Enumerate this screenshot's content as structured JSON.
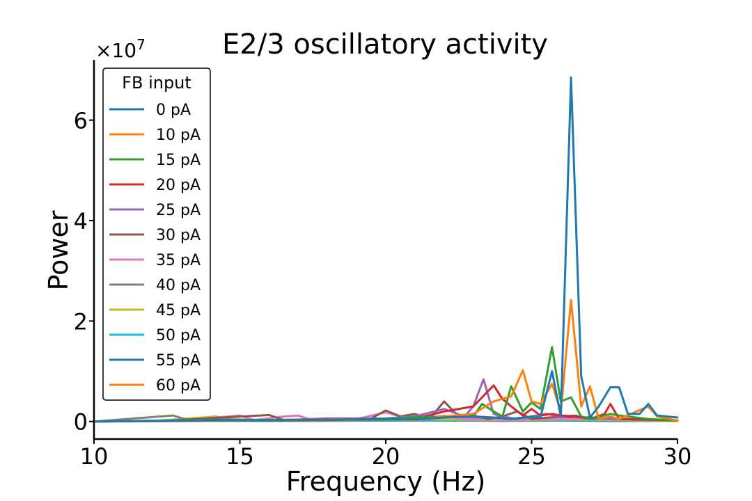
{
  "chart_data": {
    "type": "line",
    "title": "E2/3 oscillatory activity",
    "xlabel": "Frequency (Hz)",
    "ylabel": "Power",
    "y_offset_text": "×10^7",
    "y_offset_base": "×10",
    "y_offset_exp": "7",
    "xlim": [
      10,
      30
    ],
    "ylim": [
      -0.35,
      7.2
    ],
    "y_units": "×10^7",
    "xticks": [
      10,
      15,
      20,
      25,
      30
    ],
    "xtick_labels": [
      "10",
      "15",
      "20",
      "25",
      "30"
    ],
    "yticks": [
      0,
      2,
      4,
      6
    ],
    "ytick_labels": [
      "0",
      "2",
      "4",
      "6"
    ],
    "grid": false,
    "legend": {
      "title": "FB input",
      "placement": "top-left"
    },
    "series": [
      {
        "name": "0 pA",
        "color": "#1f77b4",
        "x": [
          10,
          12,
          14,
          16,
          18,
          20,
          21,
          22,
          23,
          23.7,
          24.3,
          25,
          25.3,
          25.7,
          26,
          26.35,
          26.7,
          27,
          27.3,
          27.7,
          28,
          28.3,
          28.7,
          29,
          29.3,
          30
        ],
        "y": [
          0,
          0.01,
          0.02,
          0.02,
          0.03,
          0.05,
          0.04,
          0.08,
          0.1,
          0.08,
          0.05,
          0.1,
          0.08,
          1.0,
          0.1,
          6.85,
          0.9,
          0.08,
          0.3,
          0.68,
          0.68,
          0.15,
          0.15,
          0.35,
          0.12,
          0.08
        ]
      },
      {
        "name": "10 pA",
        "color": "#ff7f0e",
        "x": [
          10,
          14,
          18,
          20,
          21,
          22,
          23,
          23.7,
          24.3,
          24.7,
          25,
          25.3,
          25.7,
          26,
          26.35,
          26.7,
          27,
          27.3,
          27.7,
          28,
          29,
          29.3,
          30
        ],
        "y": [
          0,
          0.01,
          0.02,
          0.05,
          0.03,
          0.1,
          0.15,
          0.4,
          0.5,
          1.02,
          0.4,
          0.35,
          0.75,
          0.2,
          2.42,
          0.3,
          0.7,
          0.05,
          0.1,
          0.05,
          0.3,
          0.1,
          0.02
        ]
      },
      {
        "name": "15 pA",
        "color": "#2ca02c",
        "x": [
          10,
          14,
          18,
          20,
          22,
          23,
          23.3,
          23.7,
          24,
          24.3,
          24.7,
          25,
          25.3,
          25.7,
          26,
          26.35,
          26.7,
          27,
          27.7,
          28,
          29,
          30
        ],
        "y": [
          0,
          0.03,
          0.03,
          0.06,
          0.1,
          0.1,
          0.35,
          0.2,
          0.1,
          0.7,
          0.2,
          0.38,
          0.25,
          1.48,
          0.4,
          0.48,
          0.1,
          0.05,
          0.15,
          0.12,
          0.05,
          0.02
        ]
      },
      {
        "name": "20 pA",
        "color": "#d62728",
        "x": [
          10,
          14,
          18,
          20,
          21,
          22,
          23,
          23.7,
          24,
          24.3,
          24.7,
          25,
          25.3,
          25.7,
          26,
          26.5,
          27,
          27.5,
          27.7,
          28,
          30
        ],
        "y": [
          0,
          0.02,
          0.03,
          0.04,
          0.05,
          0.2,
          0.3,
          0.72,
          0.45,
          0.3,
          0.12,
          0.25,
          0.12,
          0.15,
          0.12,
          0.1,
          0.05,
          0.15,
          0.35,
          0.05,
          0.02
        ]
      },
      {
        "name": "25 pA",
        "color": "#9467bd",
        "x": [
          10,
          14,
          18,
          20,
          21,
          22,
          22.7,
          23,
          23.35,
          23.7,
          24,
          24.5,
          25,
          25.5,
          26,
          26.5,
          27,
          28,
          30
        ],
        "y": [
          0,
          0.02,
          0.04,
          0.06,
          0.1,
          0.25,
          0.1,
          0.3,
          0.84,
          0.15,
          0.1,
          0.05,
          0.1,
          0.15,
          0.1,
          0.12,
          0.05,
          0.05,
          0.02
        ]
      },
      {
        "name": "30 pA",
        "color": "#8c564b",
        "x": [
          10,
          12.7,
          13.5,
          16,
          16.5,
          18,
          19.5,
          20,
          20.5,
          21,
          21.5,
          22,
          22.5,
          23,
          23.5,
          24,
          24.5,
          25,
          26,
          27,
          28,
          30
        ],
        "y": [
          0,
          0.02,
          0.05,
          0.13,
          0.03,
          0.06,
          0.06,
          0.22,
          0.1,
          0.15,
          0.05,
          0.4,
          0.1,
          0.12,
          0.05,
          0.1,
          0.2,
          0.05,
          0.1,
          0.08,
          0.05,
          0.02
        ]
      },
      {
        "name": "35 pA",
        "color": "#e377c2",
        "x": [
          10,
          13,
          15,
          15.5,
          16.5,
          17,
          17.5,
          19,
          20,
          20.5,
          21,
          21.3,
          21.7,
          22,
          22.5,
          23,
          24,
          25,
          26,
          28,
          30
        ],
        "y": [
          0,
          0.02,
          0.12,
          0.03,
          0.1,
          0.12,
          0.02,
          0.05,
          0.18,
          0.1,
          0.08,
          0.15,
          0.05,
          0.12,
          0.06,
          0.04,
          0.03,
          0.04,
          0.05,
          0.04,
          0.02
        ]
      },
      {
        "name": "40 pA",
        "color": "#7f7f7f",
        "x": [
          10,
          12.7,
          13.3,
          14,
          16,
          18,
          20,
          22,
          24,
          26,
          28,
          30
        ],
        "y": [
          0,
          0.12,
          0.02,
          0.05,
          0.03,
          0.04,
          0.05,
          0.1,
          0.05,
          0.06,
          0.04,
          0.02
        ]
      },
      {
        "name": "45 pA",
        "color": "#bcbd22",
        "x": [
          10,
          12,
          14.2,
          14.6,
          16,
          18,
          20,
          22,
          24,
          26,
          28,
          30
        ],
        "y": [
          0,
          0.01,
          0.1,
          0.03,
          0.03,
          0.03,
          0.05,
          0.04,
          0.03,
          0.04,
          0.03,
          0.01
        ]
      },
      {
        "name": "50 pA",
        "color": "#17becf",
        "x": [
          10,
          12,
          14,
          16,
          18,
          20,
          22,
          24,
          26,
          28,
          30
        ],
        "y": [
          0,
          0.01,
          0.01,
          0.02,
          0.02,
          0.03,
          0.03,
          0.02,
          0.03,
          0.02,
          0.01
        ]
      },
      {
        "name": "55 pA",
        "color": "#1f77b4",
        "x": [
          10,
          12,
          14,
          16,
          18,
          20,
          22,
          24,
          26,
          28,
          30
        ],
        "y": [
          0,
          0.01,
          0.01,
          0.01,
          0.02,
          0.02,
          0.02,
          0.02,
          0.02,
          0.01,
          0.01
        ]
      },
      {
        "name": "60 pA",
        "color": "#ff7f0e",
        "x": [
          10,
          12,
          14,
          16,
          18,
          20,
          22,
          24,
          26,
          28,
          30
        ],
        "y": [
          0,
          0.01,
          0.01,
          0.01,
          0.01,
          0.02,
          0.02,
          0.01,
          0.02,
          0.01,
          0.01
        ]
      }
    ]
  }
}
